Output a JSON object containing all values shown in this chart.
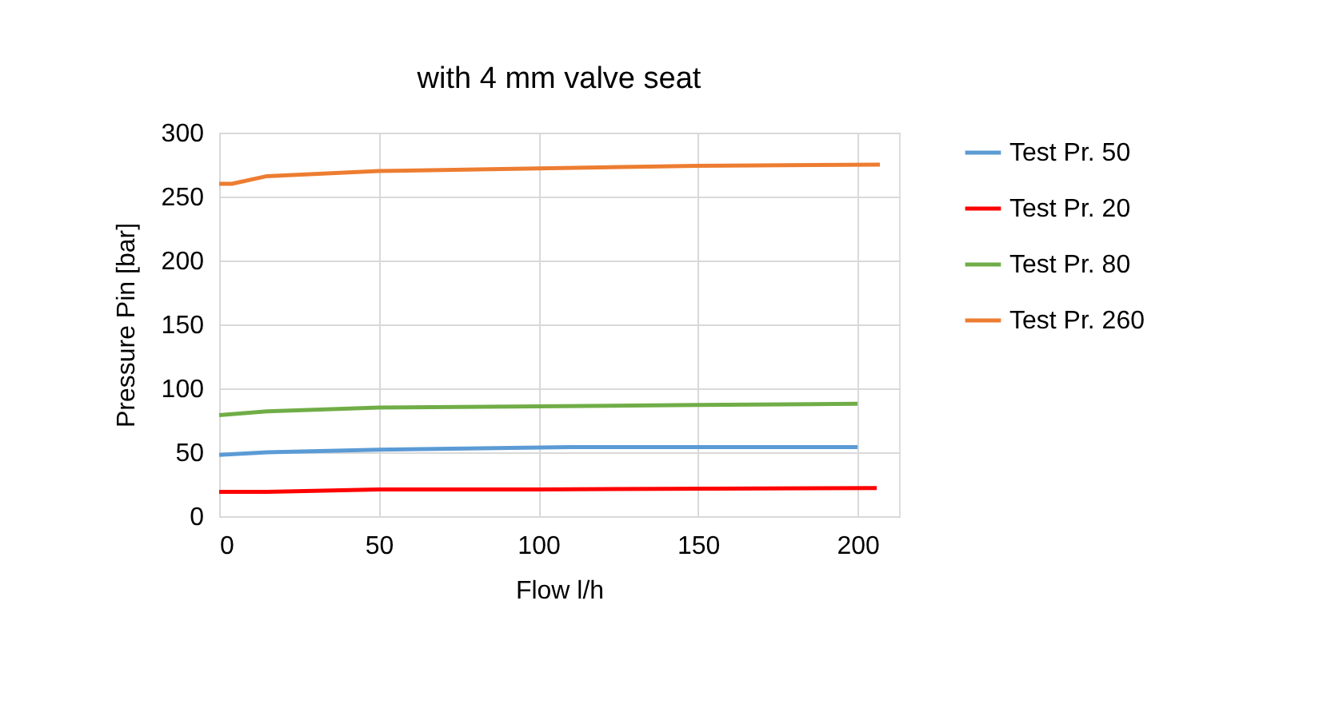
{
  "chart_data": {
    "type": "line",
    "title": "with 4 mm valve seat",
    "xlabel": "Flow l/h",
    "ylabel": "Pressure Pin [bar]",
    "xlim": [
      0,
      213
    ],
    "xticks": [
      0,
      50,
      100,
      150,
      200
    ],
    "ylim": [
      0,
      300
    ],
    "yticks": [
      0,
      50,
      100,
      150,
      200,
      250,
      300
    ],
    "grid": true,
    "legend": "right",
    "marker": "none",
    "line_style": "solid",
    "series": [
      {
        "name": "Test Pr. 50",
        "color": "#5b9bd5",
        "x": [
          0,
          15,
          50,
          110,
          200
        ],
        "values": [
          48,
          50,
          52,
          54,
          54
        ]
      },
      {
        "name": "Test Pr. 20",
        "color": "#ff0000",
        "x": [
          0,
          15,
          50,
          100,
          206
        ],
        "values": [
          19,
          19,
          21,
          21,
          22
        ]
      },
      {
        "name": "Test Pr. 80",
        "color": "#70ad47",
        "x": [
          0,
          15,
          50,
          100,
          150,
          200
        ],
        "values": [
          79,
          82,
          85,
          86,
          87,
          88
        ]
      },
      {
        "name": "Test Pr. 260",
        "color": "#ed7d31",
        "x": [
          0,
          4,
          15,
          50,
          100,
          150,
          207
        ],
        "values": [
          260,
          260,
          266,
          270,
          272,
          274,
          275
        ]
      }
    ]
  }
}
